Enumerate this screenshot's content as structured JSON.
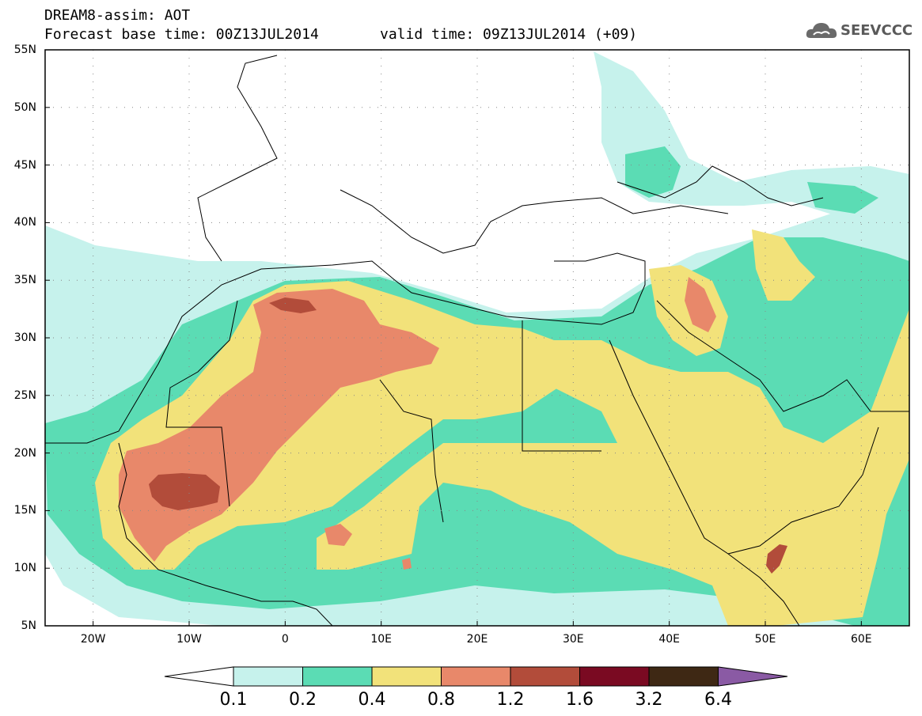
{
  "header": {
    "line1": "DREAM8-assim: AOT",
    "base_time": "Forecast base time: 00Z13JUL2014",
    "valid_time": "valid time: 09Z13JUL2014 (+09)"
  },
  "logo": {
    "icon": "cloud-icon",
    "text": "SEEVCCC"
  },
  "map": {
    "lat_labels": [
      "55N",
      "50N",
      "45N",
      "40N",
      "35N",
      "30N",
      "25N",
      "20N",
      "15N",
      "10N",
      "5N"
    ],
    "lon_labels": [
      "20W",
      "10W",
      "0",
      "10E",
      "20E",
      "30E",
      "40E",
      "50E",
      "60E"
    ],
    "lon_range": [
      -25,
      65
    ],
    "lat_range": [
      5,
      55
    ]
  },
  "colorbar": {
    "labels": [
      "0.1",
      "0.2",
      "0.4",
      "0.8",
      "1.2",
      "1.6",
      "3.2",
      "6.4"
    ],
    "colors": [
      "#c6f2ec",
      "#5bdcb4",
      "#f2e27a",
      "#e8886a",
      "#b24c3a",
      "#7a0a22",
      "#3e2814",
      "#8a5aa4"
    ],
    "under_color": "#ffffff"
  }
}
